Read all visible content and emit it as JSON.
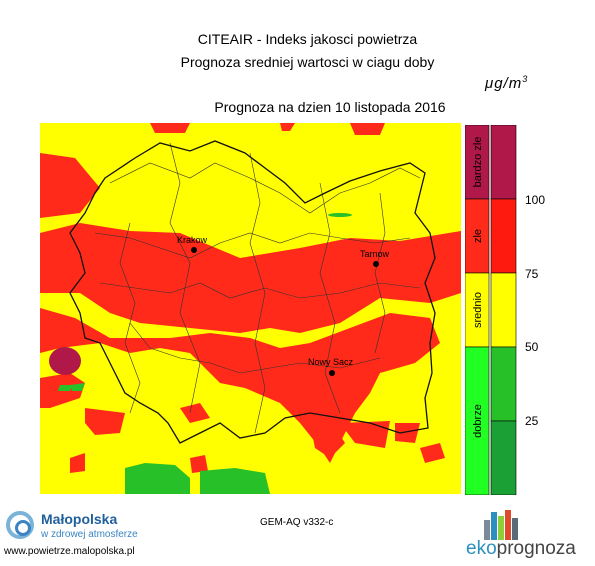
{
  "header": {
    "title": "CITEAIR - Indeks jakosci powietrza",
    "subtitle": "Prognoza sredniej wartosci w ciagu doby",
    "unit": "μg/m",
    "unit_exp": "3",
    "forecast_date_label": "Prognoza na dzien  10 listopada 2016"
  },
  "map": {
    "cities": [
      {
        "name": "Krakow"
      },
      {
        "name": "Tarnow"
      },
      {
        "name": "Nowy Sacz"
      }
    ]
  },
  "legend": {
    "categories": [
      {
        "label": "bardzo zle",
        "color": "#b0184a"
      },
      {
        "label": "zle",
        "color": "#ff2a1a"
      },
      {
        "label": "srednio",
        "color": "#ffff00"
      },
      {
        "label": "dobrze",
        "color": "#22cc22"
      }
    ],
    "levels": [
      "100",
      "75",
      "50",
      "25"
    ]
  },
  "colors": {
    "good": "#28c028",
    "moderate": "#ffff00",
    "bad": "#ff2a1a",
    "very_bad": "#b0184a"
  },
  "footer": {
    "model": "GEM-AQ v332-c",
    "logo_name": "Małopolska",
    "logo_sub": "w zdrowej atmosferze",
    "url": "www.powietrze.malopolska.pl",
    "eko_part1": "eko",
    "eko_part2": "prognoza"
  }
}
